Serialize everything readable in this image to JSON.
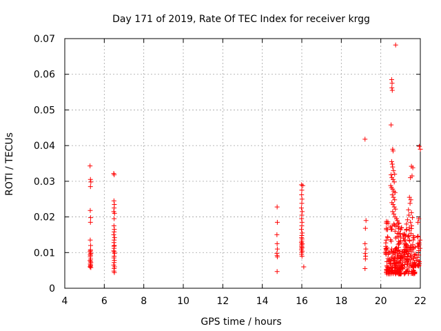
{
  "chart_data": {
    "type": "scatter",
    "title": "Day 171 of 2019, Rate Of TEC Index for receiver krgg",
    "xlabel": "GPS time / hours",
    "ylabel": "ROTI / TECUs",
    "xlim": [
      4,
      22
    ],
    "ylim": [
      0,
      0.07
    ],
    "x_ticks": [
      4,
      6,
      8,
      10,
      12,
      14,
      16,
      18,
      20,
      22
    ],
    "x_tick_labels": [
      "4",
      "6",
      "8",
      "10",
      "12",
      "14",
      "16",
      "18",
      "20",
      "22"
    ],
    "y_ticks": [
      0,
      0.01,
      0.02,
      0.03,
      0.04,
      0.05,
      0.06,
      0.07
    ],
    "y_tick_labels": [
      "0",
      "0.01",
      "0.02",
      "0.03",
      "0.04",
      "0.05",
      "0.06",
      "0.07"
    ],
    "grid": true,
    "marker": "+",
    "series": [
      {
        "name": "ROTI",
        "color": "#ff0000",
        "points": [
          [
            5.28,
            0.0343
          ],
          [
            5.3,
            0.0305
          ],
          [
            5.32,
            0.0298
          ],
          [
            5.3,
            0.0285
          ],
          [
            5.29,
            0.0218
          ],
          [
            5.31,
            0.0198
          ],
          [
            5.3,
            0.0185
          ],
          [
            5.29,
            0.0135
          ],
          [
            5.31,
            0.012
          ],
          [
            5.3,
            0.0108
          ],
          [
            5.28,
            0.0102
          ],
          [
            5.32,
            0.0098
          ],
          [
            5.3,
            0.0092
          ],
          [
            5.29,
            0.0088
          ],
          [
            5.31,
            0.0082
          ],
          [
            5.28,
            0.0078
          ],
          [
            5.3,
            0.0075
          ],
          [
            5.32,
            0.0072
          ],
          [
            5.29,
            0.0068
          ],
          [
            5.31,
            0.0065
          ],
          [
            5.3,
            0.0062
          ],
          [
            5.28,
            0.006
          ],
          [
            5.32,
            0.0058
          ],
          [
            5.3,
            0.0105
          ],
          [
            5.29,
            0.0095
          ],
          [
            6.48,
            0.0322
          ],
          [
            6.5,
            0.0318
          ],
          [
            6.49,
            0.0245
          ],
          [
            6.51,
            0.0235
          ],
          [
            6.5,
            0.0225
          ],
          [
            6.48,
            0.0215
          ],
          [
            6.52,
            0.021
          ],
          [
            6.5,
            0.0195
          ],
          [
            6.49,
            0.0175
          ],
          [
            6.51,
            0.0165
          ],
          [
            6.5,
            0.0158
          ],
          [
            6.48,
            0.015
          ],
          [
            6.52,
            0.0142
          ],
          [
            6.5,
            0.0135
          ],
          [
            6.49,
            0.0128
          ],
          [
            6.51,
            0.012
          ],
          [
            6.5,
            0.0112
          ],
          [
            6.48,
            0.0105
          ],
          [
            6.52,
            0.0098
          ],
          [
            6.5,
            0.009
          ],
          [
            6.49,
            0.0085
          ],
          [
            6.51,
            0.0078
          ],
          [
            6.5,
            0.0072
          ],
          [
            6.48,
            0.0065
          ],
          [
            6.52,
            0.006
          ],
          [
            6.5,
            0.0055
          ],
          [
            6.49,
            0.0048
          ],
          [
            6.51,
            0.0044
          ],
          [
            6.5,
            0.0102
          ],
          [
            6.49,
            0.0118
          ],
          [
            14.75,
            0.0228
          ],
          [
            14.76,
            0.0185
          ],
          [
            14.74,
            0.015
          ],
          [
            14.75,
            0.0125
          ],
          [
            14.76,
            0.011
          ],
          [
            14.74,
            0.0098
          ],
          [
            14.75,
            0.0092
          ],
          [
            14.76,
            0.0088
          ],
          [
            14.75,
            0.0047
          ],
          [
            15.98,
            0.029
          ],
          [
            16.05,
            0.0288
          ],
          [
            16.0,
            0.0275
          ],
          [
            15.99,
            0.0262
          ],
          [
            16.01,
            0.025
          ],
          [
            16.0,
            0.0238
          ],
          [
            15.98,
            0.0225
          ],
          [
            16.02,
            0.0215
          ],
          [
            16.0,
            0.0205
          ],
          [
            15.99,
            0.0195
          ],
          [
            16.01,
            0.0185
          ],
          [
            16.0,
            0.0175
          ],
          [
            15.98,
            0.0165
          ],
          [
            16.02,
            0.0155
          ],
          [
            16.0,
            0.0148
          ],
          [
            15.99,
            0.0142
          ],
          [
            16.01,
            0.0138
          ],
          [
            16.0,
            0.0132
          ],
          [
            15.98,
            0.0128
          ],
          [
            16.02,
            0.0125
          ],
          [
            16.0,
            0.0122
          ],
          [
            15.99,
            0.0118
          ],
          [
            16.01,
            0.0115
          ],
          [
            16.0,
            0.0112
          ],
          [
            15.98,
            0.0108
          ],
          [
            16.02,
            0.0104
          ],
          [
            16.0,
            0.01
          ],
          [
            15.99,
            0.0095
          ],
          [
            16.01,
            0.009
          ],
          [
            16.1,
            0.006
          ],
          [
            19.2,
            0.0418
          ],
          [
            19.25,
            0.019
          ],
          [
            19.22,
            0.0168
          ],
          [
            19.2,
            0.0125
          ],
          [
            19.24,
            0.011
          ],
          [
            19.21,
            0.0098
          ],
          [
            19.23,
            0.009
          ],
          [
            19.22,
            0.0082
          ],
          [
            19.2,
            0.0055
          ],
          [
            20.55,
            0.0585
          ],
          [
            20.57,
            0.0575
          ],
          [
            20.56,
            0.0562
          ],
          [
            20.58,
            0.0555
          ],
          [
            20.52,
            0.0458
          ],
          [
            20.6,
            0.039
          ],
          [
            20.62,
            0.0385
          ],
          [
            20.55,
            0.0355
          ],
          [
            20.58,
            0.0348
          ],
          [
            20.6,
            0.034
          ],
          [
            20.64,
            0.033
          ],
          [
            20.7,
            0.032
          ],
          [
            20.52,
            0.0318
          ],
          [
            20.56,
            0.031
          ],
          [
            20.62,
            0.0305
          ],
          [
            20.68,
            0.0298
          ],
          [
            20.5,
            0.0288
          ],
          [
            20.54,
            0.0282
          ],
          [
            20.6,
            0.0278
          ],
          [
            20.66,
            0.0272
          ],
          [
            20.72,
            0.0268
          ],
          [
            20.58,
            0.0262
          ],
          [
            20.64,
            0.0255
          ],
          [
            20.7,
            0.0248
          ],
          [
            20.56,
            0.024
          ],
          [
            20.62,
            0.0235
          ],
          [
            20.68,
            0.0228
          ],
          [
            20.74,
            0.0222
          ],
          [
            20.6,
            0.0215
          ],
          [
            20.66,
            0.0208
          ],
          [
            20.72,
            0.02
          ],
          [
            20.8,
            0.0195
          ],
          [
            20.75,
            0.0682
          ],
          [
            21.55,
            0.0342
          ],
          [
            21.62,
            0.0338
          ],
          [
            21.58,
            0.0315
          ],
          [
            21.5,
            0.031
          ],
          [
            21.45,
            0.0255
          ],
          [
            21.52,
            0.0248
          ],
          [
            21.48,
            0.0238
          ],
          [
            21.4,
            0.022
          ],
          [
            21.55,
            0.0212
          ],
          [
            21.42,
            0.0205
          ],
          [
            21.6,
            0.0198
          ],
          [
            21.35,
            0.0192
          ],
          [
            21.5,
            0.0185
          ],
          [
            21.3,
            0.018
          ],
          [
            21.56,
            0.0175
          ],
          [
            21.44,
            0.017
          ],
          [
            21.95,
            0.0398
          ],
          [
            22.0,
            0.039
          ],
          [
            21.92,
            0.0195
          ],
          [
            21.88,
            0.0185
          ]
        ]
      }
    ],
    "dense_clusters": [
      {
        "x_range": [
          20.25,
          21.0
        ],
        "y_range": [
          0.004,
          0.019
        ],
        "approx_count": 170
      },
      {
        "x_range": [
          21.0,
          21.75
        ],
        "y_range": [
          0.004,
          0.017
        ],
        "approx_count": 140
      },
      {
        "x_range": [
          21.75,
          22.0
        ],
        "y_range": [
          0.006,
          0.016
        ],
        "approx_count": 25
      }
    ]
  }
}
